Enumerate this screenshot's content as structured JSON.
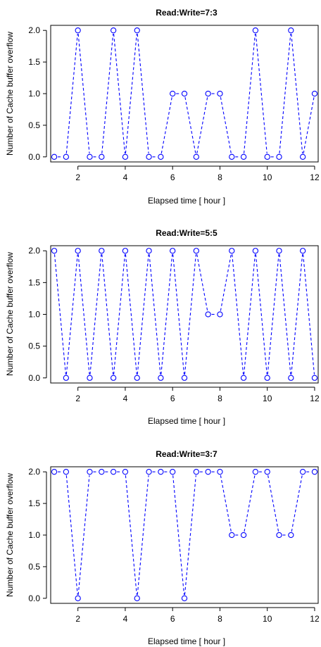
{
  "style": {
    "series_color": "#0000ff",
    "line_style": "dashed",
    "marker": "open-circle"
  },
  "chart_data": [
    {
      "type": "line",
      "title": "Read:Write=7:3",
      "xlabel": "Elapsed time [ hour ]",
      "ylabel": "Number of Cache buffer overflow",
      "x": [
        1,
        1.5,
        2,
        2.5,
        3,
        3.5,
        4,
        4.5,
        5,
        5.5,
        6,
        6.5,
        7,
        7.5,
        8,
        8.5,
        9,
        9.5,
        10,
        10.5,
        11,
        11.5,
        12
      ],
      "series": [
        {
          "values": [
            0,
            0,
            2,
            0,
            0,
            2,
            0,
            2,
            0,
            0,
            1,
            1,
            0,
            1,
            1,
            0,
            0,
            2,
            0,
            0,
            2,
            0,
            1
          ]
        }
      ],
      "xlim": [
        0.85,
        12.15
      ],
      "ylim": [
        -0.08,
        2.08
      ],
      "xticks": [
        2,
        4,
        6,
        8,
        10,
        12
      ],
      "yticks": [
        0.0,
        0.5,
        1.0,
        1.5,
        2.0
      ],
      "xtick_labels": [
        "2",
        "4",
        "6",
        "8",
        "10",
        "12"
      ],
      "ytick_labels": [
        "0.0",
        "0.5",
        "1.0",
        "1.5",
        "2.0"
      ],
      "grid": false
    },
    {
      "type": "line",
      "title": "Read:Write=5:5",
      "xlabel": "Elapsed time [ hour ]",
      "ylabel": "Number of Cache buffer overflow",
      "x": [
        1,
        1.5,
        2,
        2.5,
        3,
        3.5,
        4,
        4.5,
        5,
        5.5,
        6,
        6.5,
        7,
        7.5,
        8,
        8.5,
        9,
        9.5,
        10,
        10.5,
        11,
        11.5,
        12
      ],
      "series": [
        {
          "values": [
            2,
            0,
            2,
            0,
            2,
            0,
            2,
            0,
            2,
            0,
            2,
            0,
            2,
            1,
            1,
            2,
            0,
            2,
            0,
            2,
            0,
            2,
            0
          ]
        }
      ],
      "xlim": [
        0.85,
        12.15
      ],
      "ylim": [
        -0.08,
        2.08
      ],
      "xticks": [
        2,
        4,
        6,
        8,
        10,
        12
      ],
      "yticks": [
        0.0,
        0.5,
        1.0,
        1.5,
        2.0
      ],
      "xtick_labels": [
        "2",
        "4",
        "6",
        "8",
        "10",
        "12"
      ],
      "ytick_labels": [
        "0.0",
        "0.5",
        "1.0",
        "1.5",
        "2.0"
      ],
      "grid": false
    },
    {
      "type": "line",
      "title": "Read:Write=3:7",
      "xlabel": "Elapsed time [ hour ]",
      "ylabel": "Number of Cache buffer overflow",
      "x": [
        1,
        1.5,
        2,
        2.5,
        3,
        3.5,
        4,
        4.5,
        5,
        5.5,
        6,
        6.5,
        7,
        7.5,
        8,
        8.5,
        9,
        9.5,
        10,
        10.5,
        11,
        11.5,
        12
      ],
      "series": [
        {
          "values": [
            2,
            2,
            0,
            2,
            2,
            2,
            2,
            0,
            2,
            2,
            2,
            0,
            2,
            2,
            2,
            1,
            1,
            2,
            2,
            1,
            1,
            2,
            2
          ]
        }
      ],
      "xlim": [
        0.85,
        12.15
      ],
      "ylim": [
        -0.08,
        2.08
      ],
      "xticks": [
        2,
        4,
        6,
        8,
        10,
        12
      ],
      "yticks": [
        0.0,
        0.5,
        1.0,
        1.5,
        2.0
      ],
      "xtick_labels": [
        "2",
        "4",
        "6",
        "8",
        "10",
        "12"
      ],
      "ytick_labels": [
        "0.0",
        "0.5",
        "1.0",
        "1.5",
        "2.0"
      ],
      "grid": false
    }
  ]
}
